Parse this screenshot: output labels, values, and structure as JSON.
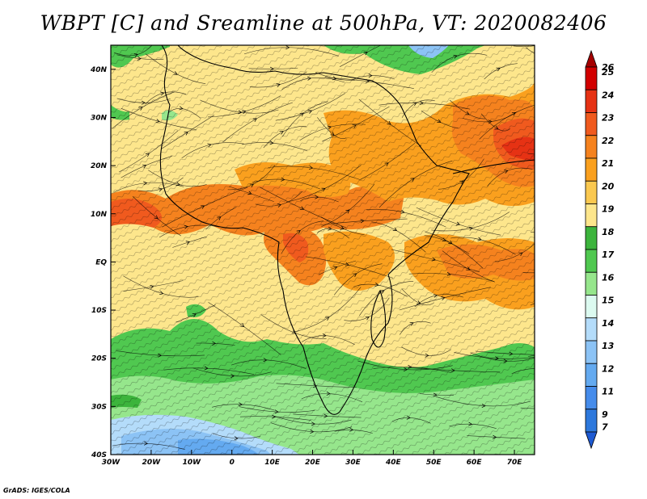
{
  "title": "WBPT [C] and Sreamline at 500hPa, VT: 2020082406",
  "credit": "GrADS: IGES/COLA",
  "map": {
    "lon_range": [
      -30,
      75
    ],
    "lat_range": [
      -40,
      45
    ],
    "lon_ticks": [
      {
        "value": -30,
        "label": "30W"
      },
      {
        "value": -20,
        "label": "20W"
      },
      {
        "value": -10,
        "label": "10W"
      },
      {
        "value": 0,
        "label": "0"
      },
      {
        "value": 10,
        "label": "10E"
      },
      {
        "value": 20,
        "label": "20E"
      },
      {
        "value": 30,
        "label": "30E"
      },
      {
        "value": 40,
        "label": "40E"
      },
      {
        "value": 50,
        "label": "50E"
      },
      {
        "value": 60,
        "label": "60E"
      },
      {
        "value": 70,
        "label": "70E"
      }
    ],
    "lat_ticks": [
      {
        "value": 40,
        "label": "40N"
      },
      {
        "value": 30,
        "label": "30N"
      },
      {
        "value": 20,
        "label": "20N"
      },
      {
        "value": 10,
        "label": "10N"
      },
      {
        "value": 0,
        "label": "EQ"
      },
      {
        "value": -10,
        "label": "10S"
      },
      {
        "value": -20,
        "label": "20S"
      },
      {
        "value": -30,
        "label": "30S"
      },
      {
        "value": -40,
        "label": "40S"
      }
    ]
  },
  "colorbar": {
    "levels": [
      {
        "label": "26",
        "color": "#a50000"
      },
      {
        "label": "25",
        "color": "#d20000"
      },
      {
        "label": "24",
        "color": "#e63214"
      },
      {
        "label": "23",
        "color": "#f05a1e"
      },
      {
        "label": "22",
        "color": "#f5821e"
      },
      {
        "label": "21",
        "color": "#faa01e"
      },
      {
        "label": "20",
        "color": "#fac850"
      },
      {
        "label": "19",
        "color": "#fde68c"
      },
      {
        "label": "18",
        "color": "#3cb43c"
      },
      {
        "label": "17",
        "color": "#50c850"
      },
      {
        "label": "16",
        "color": "#96e68c"
      },
      {
        "label": "15",
        "color": "#dcfaf0"
      },
      {
        "label": "14",
        "color": "#b4dcfa"
      },
      {
        "label": "13",
        "color": "#8cc3f5"
      },
      {
        "label": "12",
        "color": "#64aaf0"
      },
      {
        "label": "11",
        "color": "#468ceb"
      },
      {
        "label": "9",
        "color": "#2d78dc"
      },
      {
        "label": "7",
        "color": "#1e5ad2"
      }
    ]
  }
}
